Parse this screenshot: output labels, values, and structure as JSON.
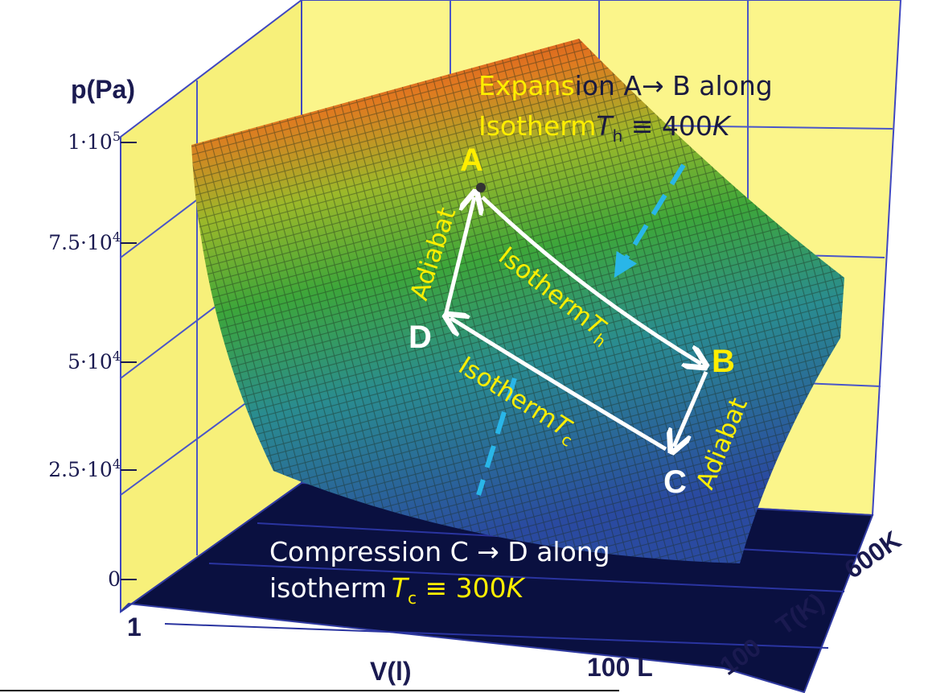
{
  "axes": {
    "p_label": "p(Pa)",
    "p_ticks": [
      {
        "base": "1·10",
        "exp": "5"
      },
      {
        "base": "7.5·10",
        "exp": "4"
      },
      {
        "base": "5·10",
        "exp": "4"
      },
      {
        "base": "2.5·10",
        "exp": "4"
      },
      {
        "base": "0"
      }
    ],
    "v_label": "V(l)",
    "v_ticks": [
      "1",
      "100 L"
    ],
    "t_label": "T(K)",
    "t_ticks": [
      "100",
      "600K"
    ]
  },
  "points": [
    "A",
    "B",
    "C",
    "D"
  ],
  "paths": {
    "left_adiabat": "Adiabat",
    "right_adiabat": "Adiabat",
    "hot_isotherm": {
      "text": "Isotherm",
      "var": "T",
      "sub": "h"
    },
    "cold_isotherm": {
      "text": "Isotherm",
      "var": "T",
      "sub": "c"
    }
  },
  "annotations": {
    "expansion": {
      "line1_a": "Expans",
      "line1_b": "ion A→ B along",
      "line2_a": "Isotherm",
      "var": "T",
      "sub": "h",
      "rest": " ≡ 400",
      "unit": "K"
    },
    "compression": {
      "line1": "Compression C → D along",
      "line2_a": "isotherm",
      "var": "T",
      "sub": "c",
      "rest": " ≡ 300",
      "unit": "K"
    }
  }
}
